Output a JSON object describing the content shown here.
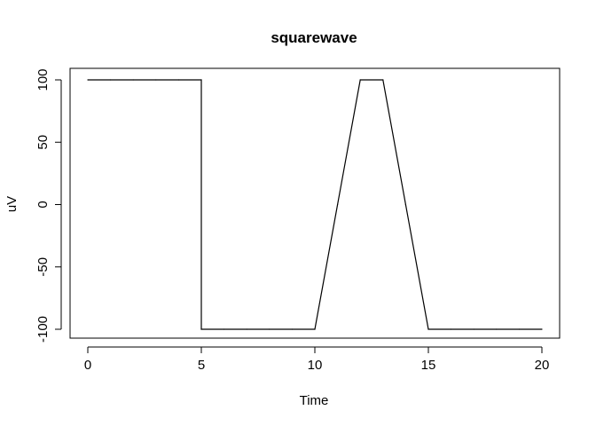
{
  "chart_data": {
    "type": "line",
    "title": "squarewave",
    "xlabel": "Time",
    "ylabel": "uV",
    "xlim": [
      0,
      20
    ],
    "ylim": [
      -100,
      100
    ],
    "x_ticks": [
      0,
      5,
      10,
      15,
      20
    ],
    "x_tick_labels": [
      "0",
      "5",
      "10",
      "15",
      "20"
    ],
    "y_ticks": [
      -100,
      -50,
      0,
      50,
      100
    ],
    "y_tick_labels": [
      "-100",
      "-50",
      "0",
      "50",
      "100"
    ],
    "grid": false,
    "legend": "none",
    "series": [
      {
        "color": "#000000",
        "x": [
          0,
          1,
          2,
          3,
          4,
          5,
          5,
          6,
          7,
          8,
          9,
          10,
          11,
          12,
          13,
          14,
          15,
          16,
          17,
          18,
          19,
          20
        ],
        "y": [
          100,
          100,
          100,
          100,
          100,
          100,
          -100,
          -100,
          -100,
          -100,
          -100,
          -100,
          0,
          100,
          100,
          0,
          -100,
          -100,
          -100,
          -100,
          -100,
          -100
        ]
      }
    ]
  }
}
